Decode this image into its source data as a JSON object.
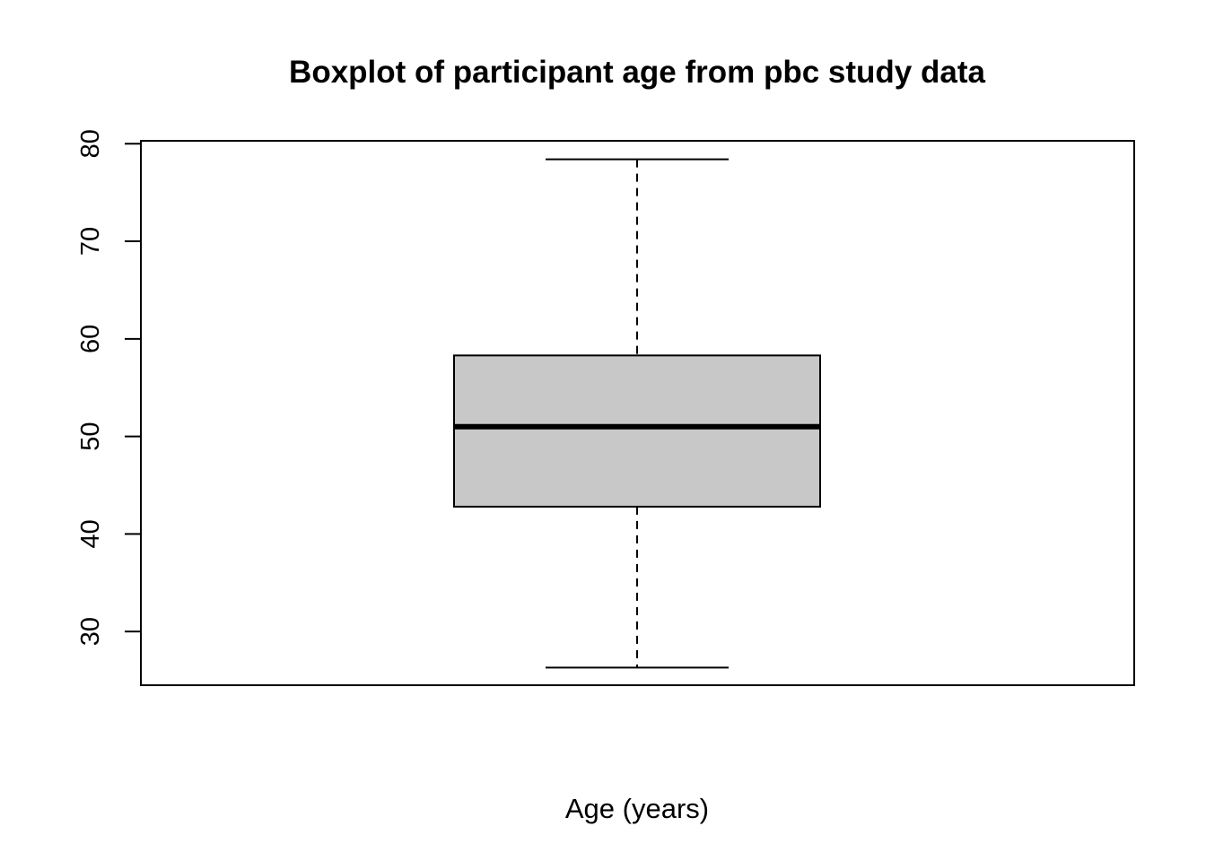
{
  "chart_data": {
    "type": "box",
    "title": "Boxplot of participant age from pbc study data",
    "xlabel": "Age (years)",
    "ylabel": "",
    "ylim": [
      24.5,
      80.3
    ],
    "yticks": [
      30,
      40,
      50,
      60,
      70,
      80
    ],
    "grid": false,
    "legend": "none",
    "colors": {
      "box_fill": "#c8c8c8",
      "stroke": "#000000",
      "background": "#ffffff"
    },
    "series": [
      {
        "lower_whisker": 26.3,
        "q1": 42.8,
        "median": 51.0,
        "q3": 58.3,
        "upper_whisker": 78.4
      }
    ]
  }
}
